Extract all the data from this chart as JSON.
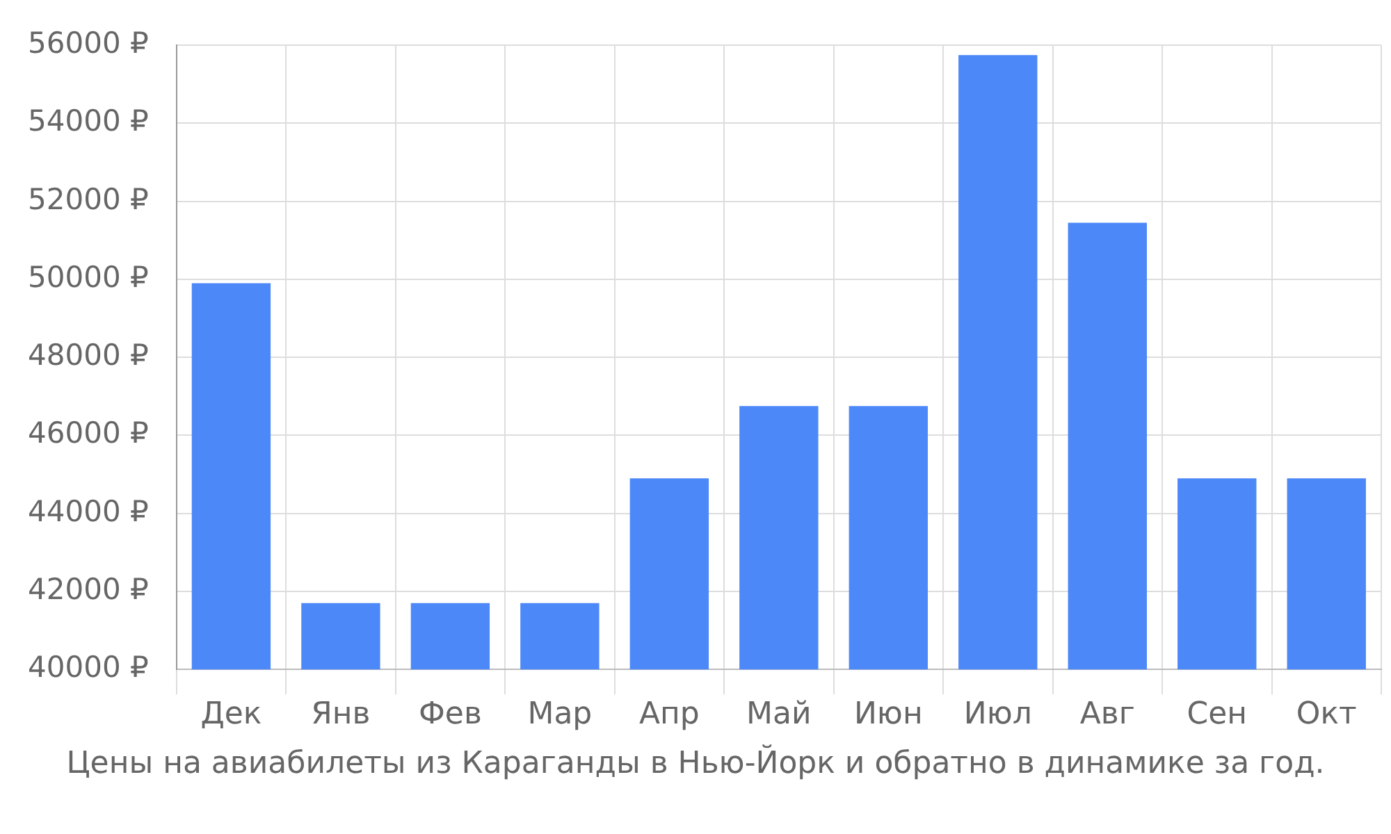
{
  "chart_data": {
    "type": "bar",
    "categories": [
      "Дек",
      "Янв",
      "Фев",
      "Мар",
      "Апр",
      "Май",
      "Июн",
      "Июл",
      "Авг",
      "Сен",
      "Окт"
    ],
    "values": [
      49900,
      41700,
      41700,
      41700,
      44900,
      46750,
      46750,
      55750,
      51450,
      44900,
      44900
    ],
    "color": "#4d88f9",
    "ylim": [
      40000,
      56000
    ],
    "yticks": [
      {
        "value": 40000,
        "label": "40000 ₽"
      },
      {
        "value": 42000,
        "label": "42000 ₽"
      },
      {
        "value": 44000,
        "label": "44000 ₽"
      },
      {
        "value": 46000,
        "label": "46000 ₽"
      },
      {
        "value": 48000,
        "label": "48000 ₽"
      },
      {
        "value": 50000,
        "label": "50000 ₽"
      },
      {
        "value": 52000,
        "label": "52000 ₽"
      },
      {
        "value": 54000,
        "label": "54000 ₽"
      },
      {
        "value": 56000,
        "label": "56000 ₽"
      }
    ],
    "grid": true,
    "annotations": [
      "Цены на авиабилеты из Караганды в Нью-Йорк и обратно в динамике за год."
    ]
  }
}
